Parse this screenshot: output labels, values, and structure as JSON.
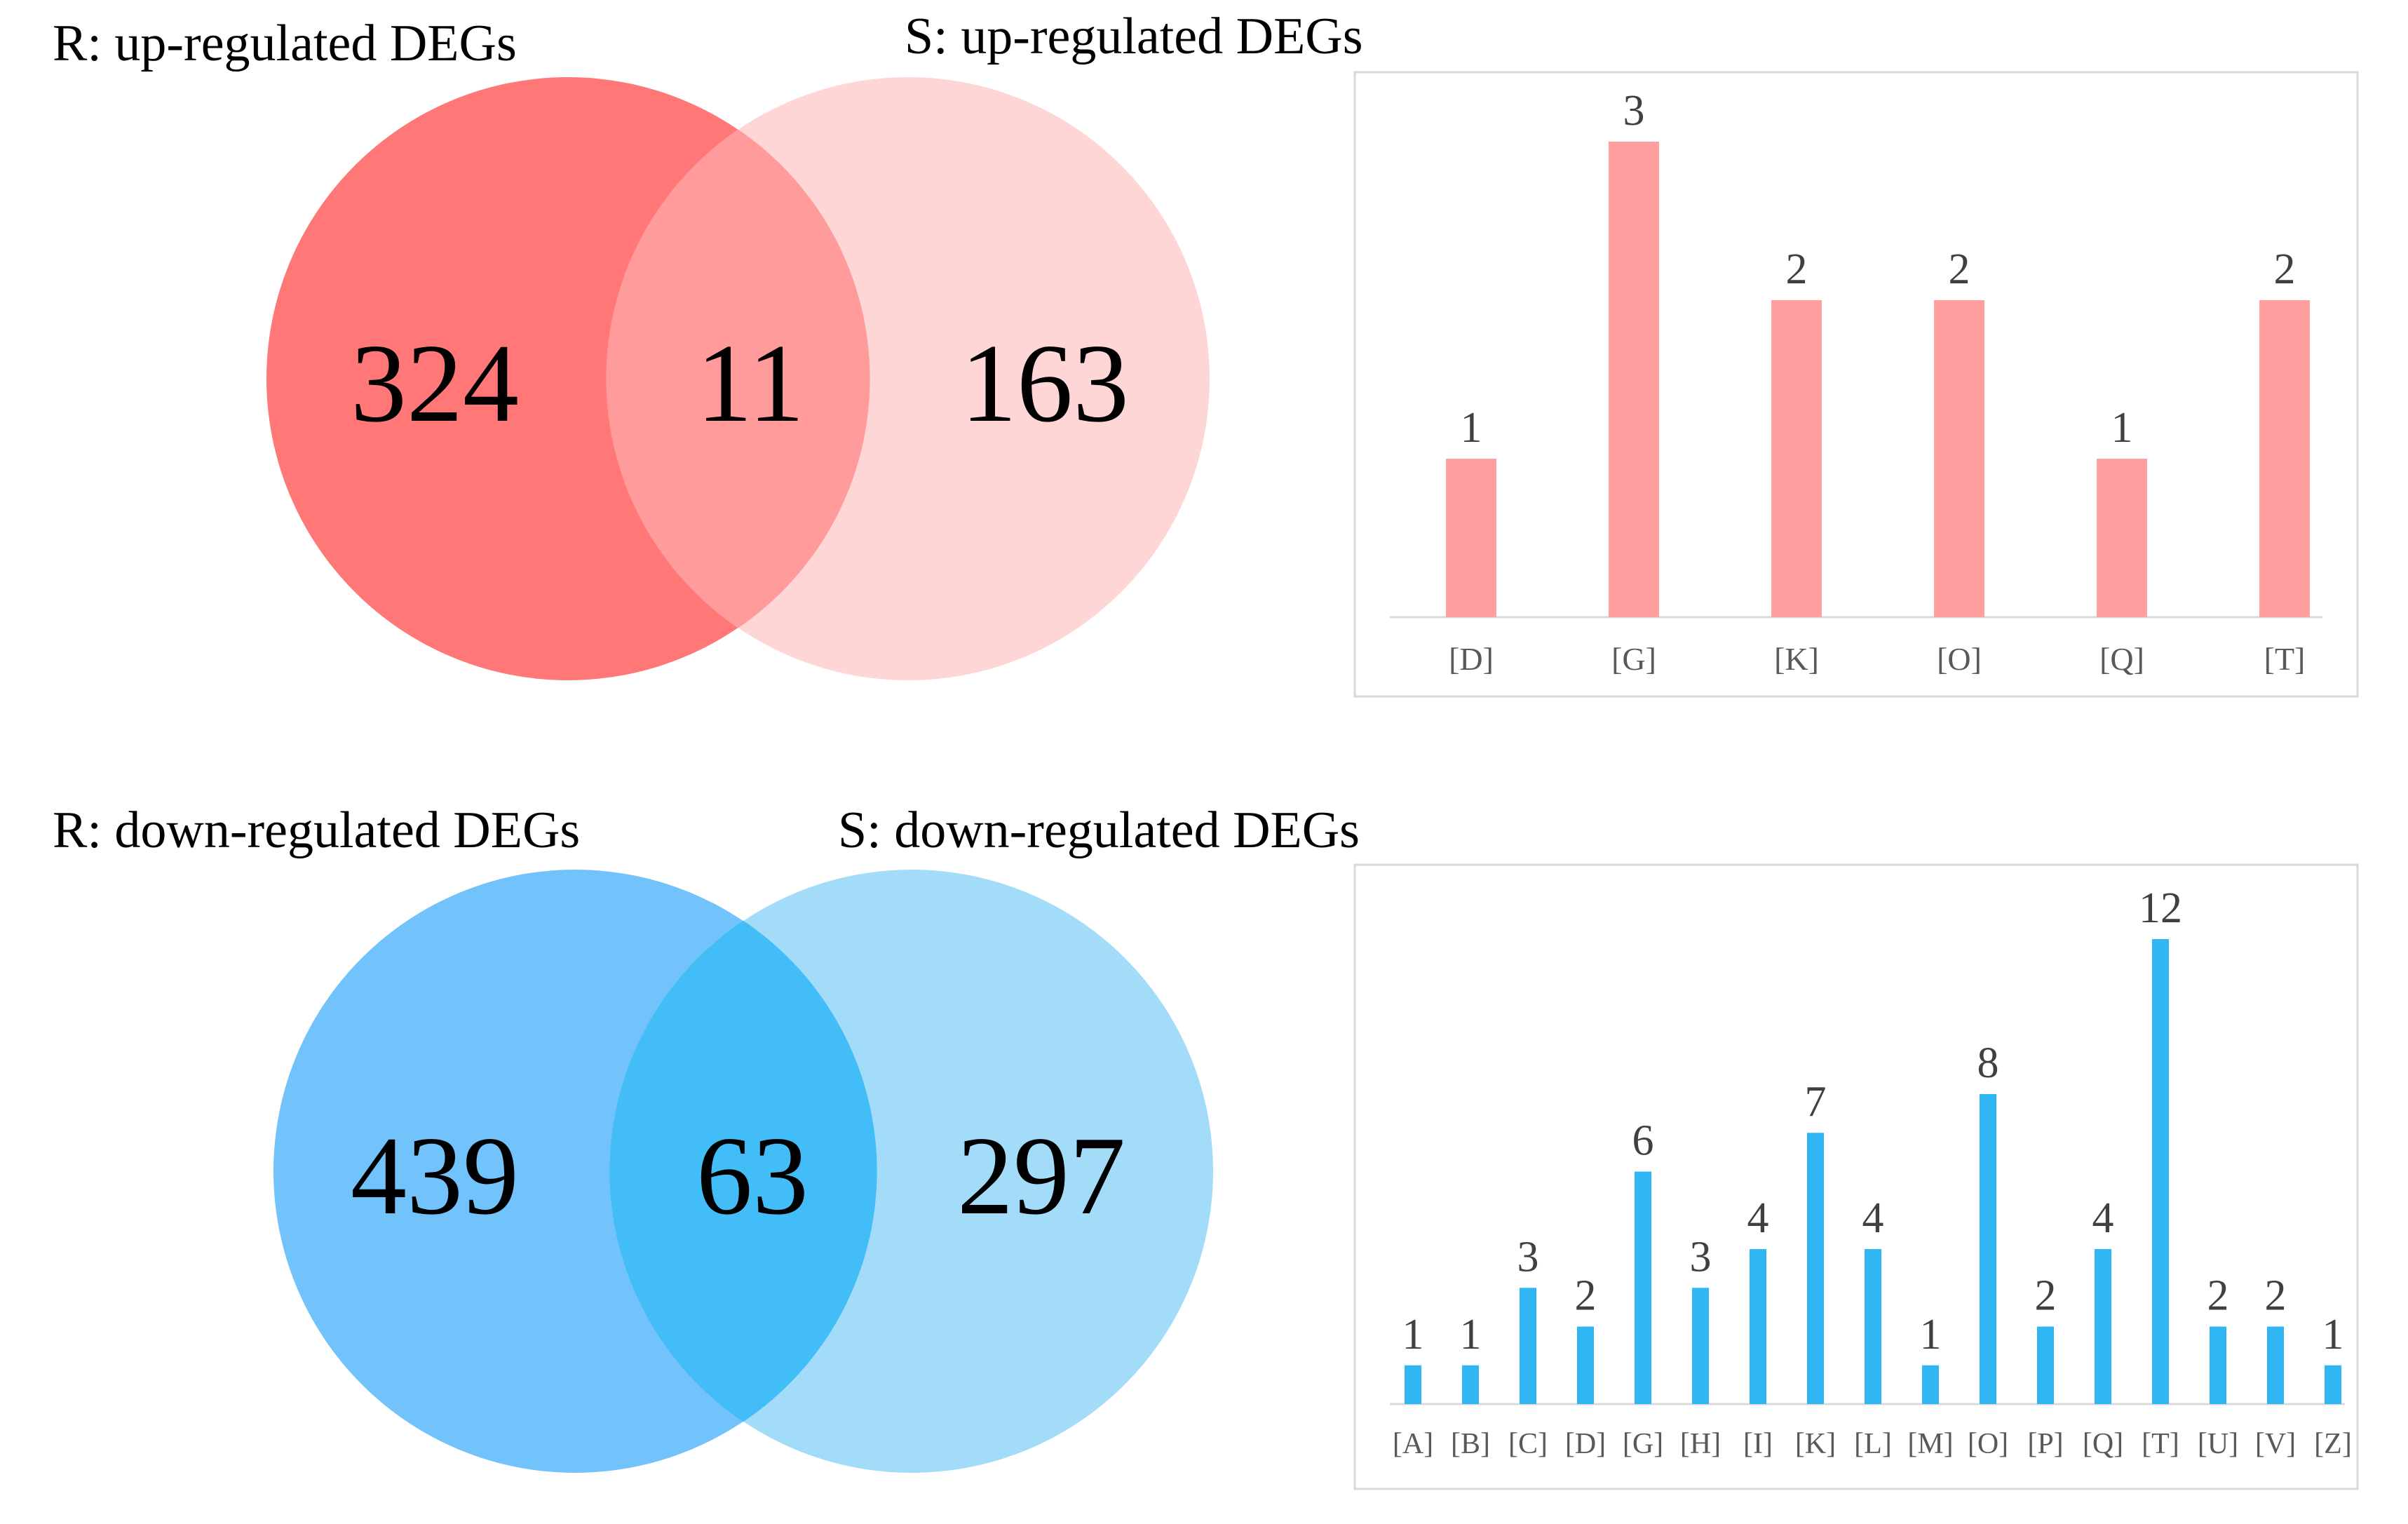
{
  "venn_up": {
    "left_title": "R: up-regulated DEGs",
    "right_title": "S: up-regulated DEGs",
    "left_only": "324",
    "overlap": "11",
    "right_only": "163",
    "colors": {
      "left": "#ff7777",
      "right": "#ffd6d6",
      "overlap": "#ff9b9b"
    }
  },
  "venn_down": {
    "left_title": "R: down-regulated DEGs",
    "right_title": "S: down-regulated DEGs",
    "left_only": "439",
    "overlap": "63",
    "right_only": "297",
    "colors": {
      "left": "#72c2fb",
      "right": "#a3dcf8",
      "overlap": "#42bdf8"
    }
  },
  "chart_data": [
    {
      "type": "bar",
      "title": "",
      "xlabel": "",
      "ylabel": "",
      "grid": false,
      "color": "#ff9f9f",
      "ylim": [
        0,
        3
      ],
      "categories": [
        "[D]",
        "[G]",
        "[K]",
        "[O]",
        "[Q]",
        "[T]"
      ],
      "values": [
        1,
        3,
        2,
        2,
        1,
        2
      ]
    },
    {
      "type": "bar",
      "title": "",
      "xlabel": "",
      "ylabel": "",
      "grid": false,
      "color": "#2fb6f3",
      "ylim": [
        0,
        12
      ],
      "categories": [
        "[A]",
        "[B]",
        "[C]",
        "[D]",
        "[G]",
        "[H]",
        "[I]",
        "[K]",
        "[L]",
        "[M]",
        "[O]",
        "[P]",
        "[Q]",
        "[T]",
        "[U]",
        "[V]",
        "[Z]"
      ],
      "values": [
        1,
        1,
        3,
        2,
        6,
        3,
        4,
        7,
        4,
        1,
        8,
        2,
        4,
        12,
        2,
        2,
        1
      ]
    }
  ]
}
